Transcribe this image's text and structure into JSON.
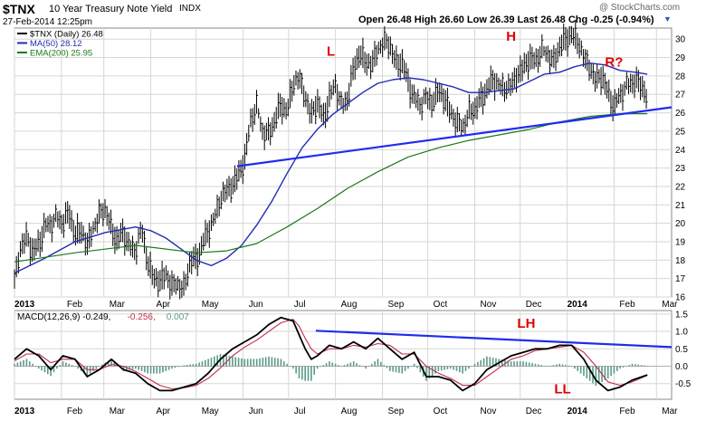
{
  "header": {
    "symbol": "$TNX",
    "name": "10 Year Treasury Note Yield",
    "exchange": "INDX",
    "date": "27-Feb-2014 12:25pm",
    "watermark": "@ StockCharts.com",
    "open_label": "Open",
    "open": "26.48",
    "high_label": "High",
    "high": "26.60",
    "low_label": "Low",
    "low": "26.39",
    "last_label": "Last",
    "last": "26.48",
    "chg_label": "Chg",
    "chg": "-0.25 (-0.94%)"
  },
  "colors": {
    "price": "#000000",
    "ma50": "#1f2cb0",
    "ema200": "#1a7a1a",
    "trendline": "#1f2cf0",
    "annotation": "#e00000",
    "macd_line": "#000000",
    "signal_line": "#c0304a",
    "histogram": "#5a9a8a",
    "grid": "#d6d6d6"
  },
  "chart_data": [
    {
      "type": "line",
      "title": "",
      "legend_placement": "top-left",
      "legend": [
        {
          "key": "price",
          "text": "$TNX (Daily) 26.48"
        },
        {
          "key": "ma50",
          "text": "MA(50) 28.12"
        },
        {
          "key": "ema200",
          "text": "EMA(200) 25.95"
        }
      ],
      "ylim": [
        16,
        30.6
      ],
      "yticks": [
        16,
        17,
        18,
        19,
        20,
        21,
        22,
        23,
        24,
        25,
        26,
        27,
        28,
        29,
        30
      ],
      "grid": true,
      "y_axis_side": "right",
      "x_ticks": [
        {
          "label": "2013",
          "t": 0
        },
        {
          "label": "Feb",
          "t": 31
        },
        {
          "label": "Mar",
          "t": 59
        },
        {
          "label": "Apr",
          "t": 90
        },
        {
          "label": "May",
          "t": 120
        },
        {
          "label": "Jun",
          "t": 151
        },
        {
          "label": "Jul",
          "t": 181
        },
        {
          "label": "Aug",
          "t": 212
        },
        {
          "label": "Sep",
          "t": 243
        },
        {
          "label": "Oct",
          "t": 273
        },
        {
          "label": "Nov",
          "t": 304
        },
        {
          "label": "Dec",
          "t": 334
        },
        {
          "label": "2014",
          "t": 365
        },
        {
          "label": "Feb",
          "t": 396
        },
        {
          "label": "Mar",
          "t": 424
        }
      ],
      "xlim": [
        0,
        434
      ],
      "series": [
        {
          "key": "price",
          "name": "$TNX (Daily) 26.48",
          "style": "ohlc",
          "x": [
            0,
            4,
            8,
            12,
            16,
            20,
            24,
            28,
            32,
            36,
            40,
            44,
            48,
            52,
            56,
            60,
            64,
            68,
            72,
            76,
            80,
            84,
            88,
            92,
            96,
            100,
            104,
            108,
            112,
            116,
            120,
            124,
            128,
            132,
            136,
            140,
            144,
            148,
            152,
            156,
            160,
            164,
            168,
            172,
            176,
            180,
            184,
            188,
            192,
            196,
            200,
            204,
            208,
            212,
            216,
            220,
            224,
            228,
            232,
            236,
            240,
            244,
            248,
            252,
            256,
            260,
            264,
            268,
            272,
            276,
            280,
            284,
            288,
            292,
            296,
            300,
            304,
            308,
            312,
            316,
            320,
            324,
            328,
            332,
            336,
            340,
            344,
            348,
            352,
            356,
            360,
            364,
            368,
            372,
            376,
            380,
            384,
            388,
            392,
            396,
            400,
            404,
            408,
            412,
            416,
            418
          ],
          "y": [
            17.0,
            18.7,
            19.2,
            18.4,
            18.8,
            19.8,
            20.0,
            20.4,
            20.0,
            20.6,
            19.3,
            19.6,
            18.8,
            19.8,
            20.5,
            20.8,
            19.6,
            19.0,
            19.5,
            18.7,
            18.6,
            19.8,
            17.8,
            17.0,
            16.8,
            17.2,
            16.6,
            16.8,
            16.4,
            18.0,
            17.9,
            18.8,
            19.6,
            20.3,
            21.4,
            21.8,
            22.0,
            22.6,
            23.4,
            25.6,
            26.4,
            25.0,
            24.8,
            25.6,
            26.4,
            26.0,
            27.6,
            28.0,
            26.9,
            25.8,
            26.6,
            25.6,
            26.8,
            27.6,
            26.4,
            26.8,
            28.4,
            29.2,
            28.7,
            28.6,
            29.5,
            29.9,
            29.7,
            28.6,
            28.7,
            27.6,
            26.8,
            26.5,
            26.9,
            26.5,
            27.2,
            26.7,
            26.0,
            25.5,
            25.3,
            26.0,
            26.2,
            26.7,
            27.2,
            27.8,
            27.5,
            27.4,
            27.5,
            28.0,
            28.4,
            28.9,
            28.8,
            29.4,
            29.3,
            28.7,
            29.6,
            29.9,
            30.2,
            29.9,
            29.1,
            28.5,
            27.7,
            28.0,
            27.0,
            26.3,
            27.0,
            27.5,
            27.7,
            27.6,
            27.2,
            26.5
          ]
        },
        {
          "key": "ma50",
          "name": "MA(50) 28.12",
          "style": "line",
          "x": [
            0,
            20,
            40,
            60,
            80,
            90,
            100,
            110,
            120,
            130,
            140,
            150,
            160,
            170,
            180,
            190,
            200,
            210,
            220,
            230,
            240,
            250,
            260,
            270,
            280,
            290,
            300,
            310,
            320,
            330,
            340,
            350,
            360,
            370,
            380,
            390,
            400,
            410,
            418
          ],
          "y": [
            17.3,
            18.1,
            19.0,
            19.5,
            19.8,
            19.6,
            19.2,
            18.6,
            18.0,
            17.7,
            18.1,
            18.8,
            19.9,
            21.2,
            22.7,
            24.1,
            25.1,
            25.9,
            26.5,
            27.1,
            27.6,
            27.8,
            27.9,
            27.8,
            27.6,
            27.4,
            27.1,
            27.1,
            27.2,
            27.3,
            27.7,
            28.1,
            28.2,
            28.5,
            28.7,
            28.6,
            28.3,
            28.2,
            28.1
          ]
        },
        {
          "key": "ema200",
          "name": "EMA(200) 25.95",
          "style": "line",
          "x": [
            0,
            40,
            80,
            120,
            140,
            160,
            180,
            200,
            220,
            240,
            260,
            280,
            300,
            320,
            340,
            360,
            380,
            400,
            418
          ],
          "y": [
            17.9,
            18.4,
            18.8,
            18.4,
            18.5,
            18.9,
            19.8,
            20.8,
            21.9,
            22.8,
            23.6,
            24.1,
            24.5,
            24.8,
            25.1,
            25.5,
            25.8,
            25.95,
            25.95
          ]
        },
        {
          "key": "trendline",
          "name": "",
          "style": "line",
          "x": [
            147,
            434
          ],
          "y": [
            23.1,
            26.3
          ]
        }
      ],
      "annotations": [
        {
          "text": "L",
          "x": 209,
          "y": 29.1
        },
        {
          "text": "H",
          "x": 328,
          "y": 29.9
        },
        {
          "text": "R?",
          "x": 396,
          "y": 28.5
        }
      ]
    },
    {
      "type": "line",
      "title": "",
      "legend_placement": "top-left",
      "legend": [
        {
          "key": "macd_line",
          "text": "MACD(12,26,9) -0.249,"
        },
        {
          "key": "signal_line",
          "text": "-0.256,"
        },
        {
          "key": "histogram",
          "text": "0.007"
        }
      ],
      "ylim": [
        -0.95,
        1.6
      ],
      "yticks": [
        -0.5,
        0.0,
        0.5,
        1.0,
        1.5
      ],
      "grid": true,
      "y_axis_side": "right",
      "series": [
        {
          "key": "macd_line",
          "name": "MACD",
          "style": "line",
          "x": [
            0,
            8,
            16,
            24,
            32,
            40,
            48,
            56,
            64,
            72,
            80,
            88,
            96,
            104,
            112,
            120,
            128,
            136,
            144,
            152,
            160,
            168,
            176,
            184,
            188,
            192,
            196,
            200,
            208,
            216,
            224,
            232,
            240,
            248,
            256,
            264,
            272,
            280,
            288,
            296,
            304,
            312,
            320,
            328,
            336,
            344,
            352,
            360,
            368,
            376,
            384,
            392,
            400,
            408,
            418
          ],
          "y": [
            0.2,
            0.5,
            0.3,
            -0.1,
            0.3,
            0.2,
            -0.3,
            -0.1,
            0.2,
            -0.1,
            -0.2,
            -0.5,
            -0.7,
            -0.7,
            -0.6,
            -0.5,
            -0.2,
            0.2,
            0.5,
            0.7,
            0.9,
            1.2,
            1.4,
            1.3,
            0.9,
            0.5,
            0.2,
            0.3,
            0.6,
            0.5,
            0.7,
            0.5,
            0.8,
            0.5,
            0.2,
            0.4,
            -0.3,
            -0.3,
            -0.4,
            -0.7,
            -0.5,
            -0.1,
            0.1,
            0.3,
            0.4,
            0.5,
            0.5,
            0.6,
            0.6,
            0.2,
            -0.4,
            -0.7,
            -0.6,
            -0.4,
            -0.25
          ]
        },
        {
          "key": "signal_line",
          "name": "Signal",
          "style": "line",
          "x": [
            0,
            8,
            16,
            24,
            32,
            40,
            48,
            56,
            64,
            72,
            80,
            88,
            96,
            104,
            112,
            120,
            128,
            136,
            144,
            152,
            160,
            168,
            176,
            184,
            188,
            192,
            196,
            200,
            208,
            216,
            224,
            232,
            240,
            248,
            256,
            264,
            272,
            280,
            288,
            296,
            304,
            312,
            320,
            328,
            336,
            344,
            352,
            360,
            368,
            376,
            384,
            392,
            400,
            408,
            418
          ],
          "y": [
            0.15,
            0.35,
            0.35,
            0.1,
            0.2,
            0.2,
            -0.1,
            -0.1,
            0.05,
            0.0,
            -0.15,
            -0.35,
            -0.55,
            -0.65,
            -0.62,
            -0.55,
            -0.35,
            -0.05,
            0.3,
            0.55,
            0.75,
            1.0,
            1.25,
            1.35,
            1.15,
            0.8,
            0.5,
            0.35,
            0.5,
            0.5,
            0.6,
            0.55,
            0.65,
            0.6,
            0.35,
            0.35,
            0.0,
            -0.2,
            -0.35,
            -0.55,
            -0.55,
            -0.3,
            -0.05,
            0.2,
            0.3,
            0.45,
            0.5,
            0.55,
            0.6,
            0.4,
            0.0,
            -0.45,
            -0.55,
            -0.45,
            -0.26
          ]
        },
        {
          "key": "trendline",
          "name": "",
          "style": "line",
          "x": [
            199,
            434
          ],
          "y": [
            1.02,
            0.55
          ]
        }
      ],
      "annotations": [
        {
          "text": "LH",
          "x": 338,
          "y": 1.1
        },
        {
          "text": "LL",
          "x": 362,
          "y": -0.78
        }
      ]
    }
  ]
}
